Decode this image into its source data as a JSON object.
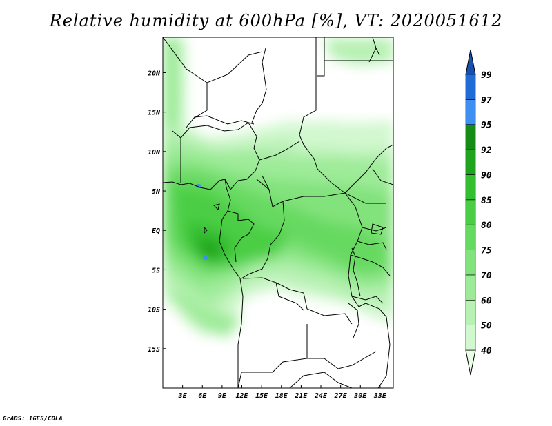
{
  "title": "Relative humidity at 600hPa [%], VT: 2020051612",
  "credit": "GrADS: IGES/COLA",
  "map": {
    "lon_labels": [
      "3E",
      "6E",
      "9E",
      "12E",
      "15E",
      "18E",
      "21E",
      "24E",
      "27E",
      "30E",
      "33E"
    ],
    "lat_labels": [
      "20N",
      "15N",
      "10N",
      "5N",
      "EQ",
      "5S",
      "10S",
      "15S"
    ],
    "lon_range": [
      0,
      35
    ],
    "lat_range": [
      -20,
      24.5
    ]
  },
  "colorbar": {
    "levels": [
      "40",
      "50",
      "60",
      "70",
      "75",
      "80",
      "85",
      "90",
      "92",
      "95",
      "97",
      "99"
    ],
    "colors": [
      "#e8fce6",
      "#d2f8cf",
      "#b8f1b4",
      "#9deb98",
      "#82e27c",
      "#66d960",
      "#4bce45",
      "#34bf30",
      "#20a41e",
      "#168c16",
      "#3d8ff0",
      "#1f6cd6",
      "#1850b0"
    ]
  }
}
